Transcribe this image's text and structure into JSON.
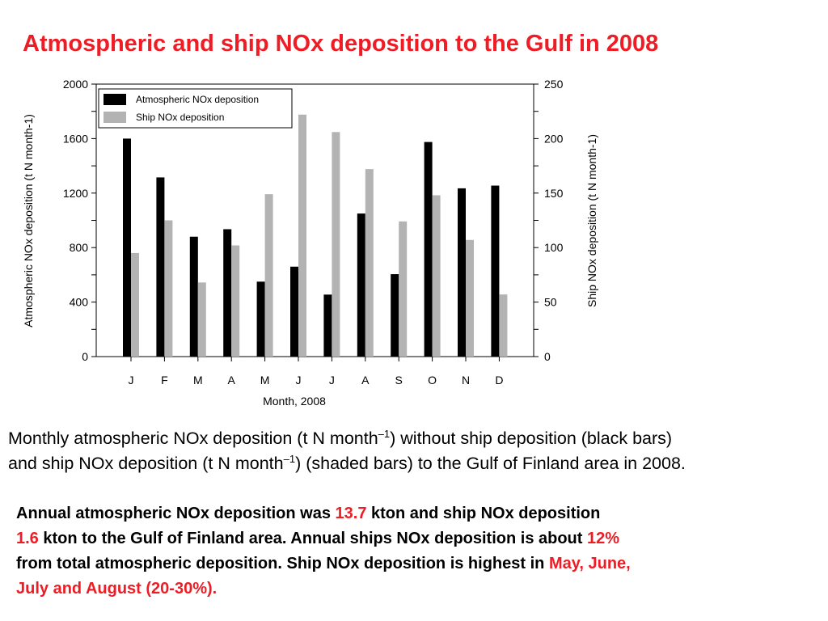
{
  "title": "Atmospheric and ship NOx deposition to the Gulf in 2008",
  "chart_data": {
    "type": "bar",
    "categories": [
      "J",
      "F",
      "M",
      "A",
      "M",
      "J",
      "J",
      "A",
      "S",
      "O",
      "N",
      "D"
    ],
    "xlabel": "Month, 2008",
    "ylabel_left": "Atmospheric NOx deposition (t N month-1)",
    "ylabel_right": "Ship NOx deposition (t N month-1)",
    "ylim_left": [
      0,
      2000
    ],
    "ylim_right": [
      0,
      250
    ],
    "yticks_left": [
      "0",
      "400",
      "800",
      "1200",
      "1600",
      "2000"
    ],
    "yticks_right": [
      "0",
      "50",
      "100",
      "150",
      "200",
      "250"
    ],
    "legend_position": "top-left",
    "grid": false,
    "series": [
      {
        "name": "Atmospheric NOx deposition",
        "axis": "left",
        "color": "#000000",
        "values": [
          1600,
          1315,
          880,
          935,
          550,
          660,
          455,
          1050,
          605,
          1575,
          1235,
          1255
        ]
      },
      {
        "name": "Ship NOx deposition",
        "axis": "right",
        "color": "#b3b3b3",
        "values": [
          95,
          125,
          68,
          102,
          149,
          222,
          206,
          172,
          124,
          148,
          107,
          57
        ]
      }
    ]
  },
  "caption": {
    "line1_pre": "Monthly atmospheric NOx deposition (t N month",
    "line1_sup": "–1",
    "line1_post": ") without ship deposition (black bars)",
    "line2_pre": "and ship NOx deposition (t N month",
    "line2_sup": "–1",
    "line2_post": ") (shaded bars) to the Gulf of Finland area in 2008."
  },
  "summary": {
    "t1": "Annual atmospheric NOx deposition was ",
    "v1": "13.7",
    "t2": " kton and ship NOx deposition",
    "v2": "1.6",
    "t3": " kton to the Gulf of Finland area. Annual ships NOx deposition is about ",
    "v3": "12%",
    "t4": "from total atmospheric deposition. Ship NOx deposition is highest in ",
    "v4": "May, June,",
    "v5": "July and August (20-30%)."
  },
  "colors": {
    "title": "#ee1c24",
    "highlight": "#ee1c24"
  }
}
